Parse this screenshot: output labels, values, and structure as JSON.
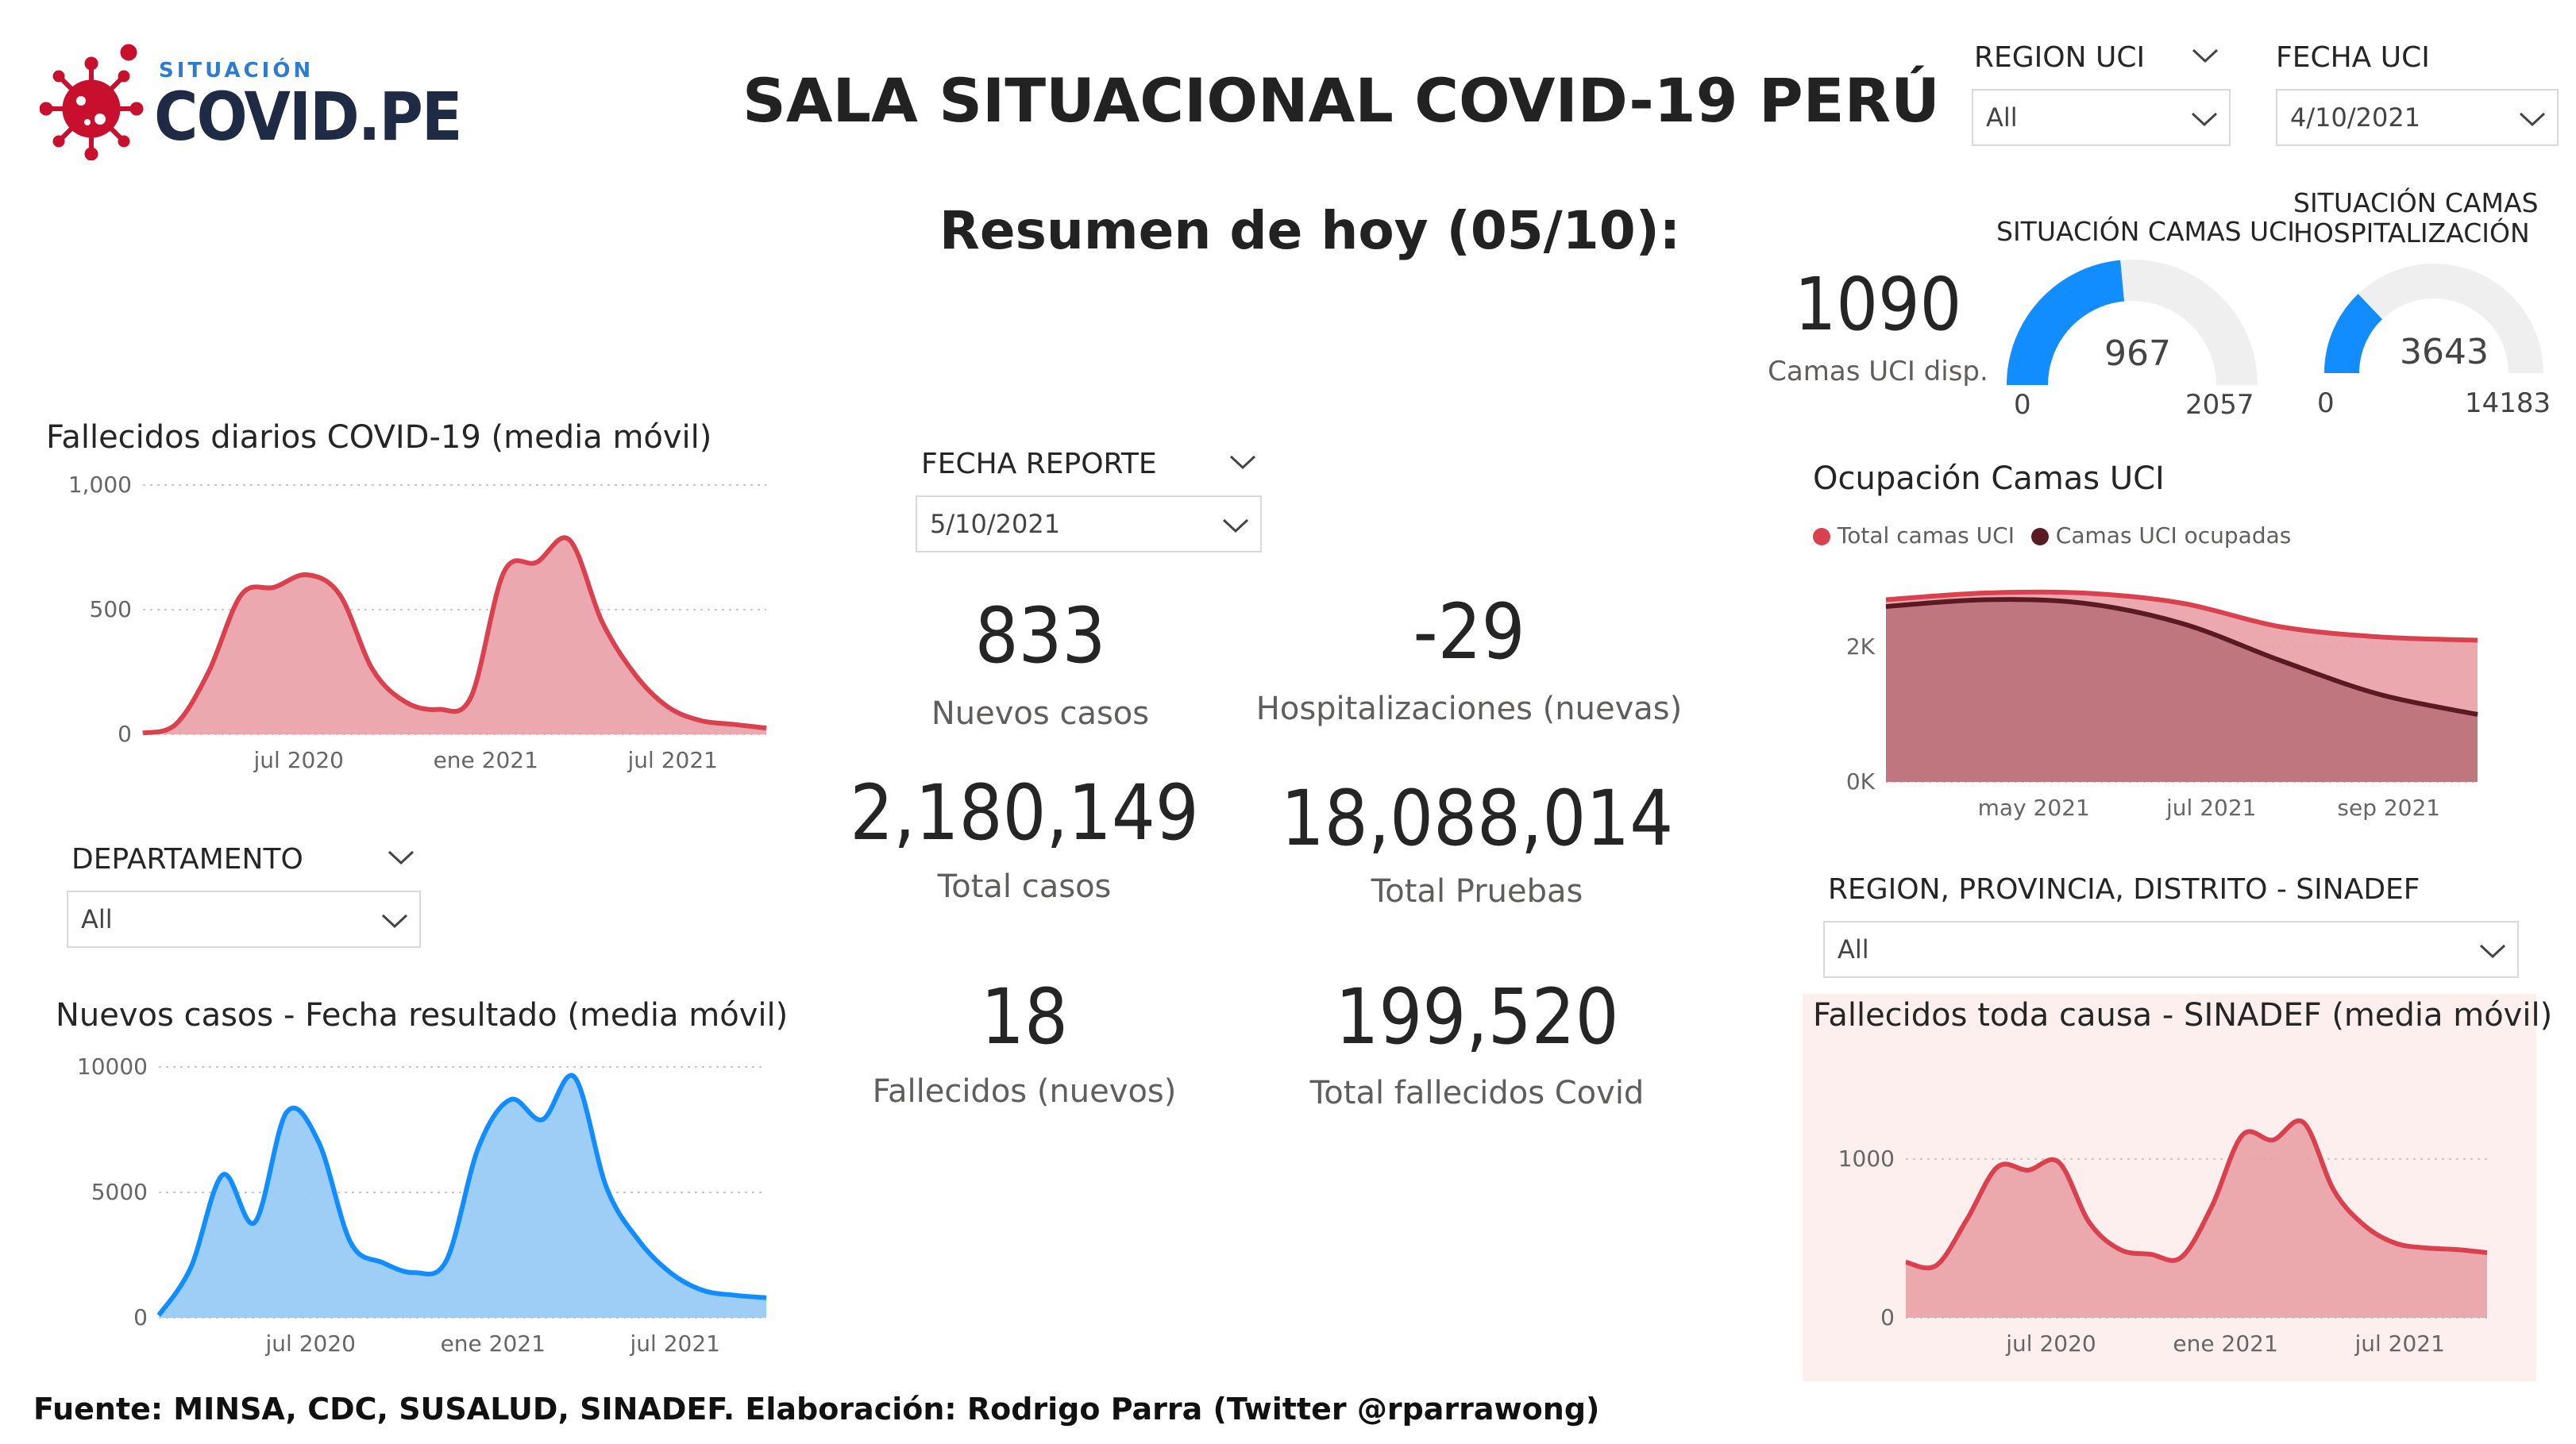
{
  "header": {
    "logo_small": "SITUACIÓN",
    "logo_big": "COVID.PE",
    "title": "SALA SITUACIONAL COVID-19 PERÚ",
    "subtitle": "Resumen de hoy (05/10):"
  },
  "slicers": {
    "region_uci": {
      "label": "REGION UCI",
      "value": "All"
    },
    "fecha_uci": {
      "label": "FECHA UCI",
      "value": "4/10/2021"
    },
    "fecha_reporte": {
      "label": "FECHA REPORTE",
      "value": "5/10/2021"
    },
    "departamento": {
      "label": "DEPARTAMENTO",
      "value": "All"
    },
    "region_sinadef": {
      "label": "REGION, PROVINCIA, DISTRITO - SINADEF",
      "value": "All"
    }
  },
  "kpis": {
    "nuevos_casos": {
      "value": "833",
      "label": "Nuevos casos"
    },
    "hospitalizaciones": {
      "value": "-29",
      "label": "Hospitalizaciones (nuevas)"
    },
    "total_casos": {
      "value": "2,180,149",
      "label": "Total casos"
    },
    "total_pruebas": {
      "value": "18,088,014",
      "label": "Total Pruebas"
    },
    "fallecidos": {
      "value": "18",
      "label": "Fallecidos (nuevos)"
    },
    "total_fallecidos": {
      "value": "199,520",
      "label": "Total fallecidos Covid"
    }
  },
  "uci": {
    "camas_disp_value": "1090",
    "camas_disp_label": "Camas UCI disp.",
    "gauge1": {
      "title": "SITUACIÓN CAMAS UCI",
      "value": "967",
      "min": "0",
      "max": "2057",
      "fraction": 0.47
    },
    "gauge2": {
      "title_line1": "SITUACIÓN CAMAS",
      "title_line2": "HOSPITALIZACIÓN",
      "value": "3643",
      "min": "0",
      "max": "14183",
      "fraction": 0.257
    }
  },
  "colors": {
    "red": "#d9414f",
    "red_fill": "#eaa3aa",
    "blue": "#118dff",
    "blue_fill": "#99cbf5",
    "dark_red": "#5a1a22",
    "gauge_bg": "#efefef",
    "sinadef_bg": "#fcefed"
  },
  "footer": "Fuente: MINSA, CDC, SUSALUD, SINADEF. Elaboración: Rodrigo Parra (Twitter @rparrawong)",
  "chart_data": [
    {
      "id": "fallecidos",
      "type": "area",
      "title": "Fallecidos diarios COVID-19 (media móvil)",
      "x_ticks": [
        "jul 2020",
        "ene 2021",
        "jul 2021"
      ],
      "y_ticks": [
        "0",
        "500",
        "1,000"
      ],
      "ylim": [
        0,
        1000
      ],
      "x": [
        "2020-03",
        "2020-04",
        "2020-05",
        "2020-06",
        "2020-07",
        "2020-08",
        "2020-09",
        "2020-10",
        "2020-11",
        "2020-12",
        "2021-01",
        "2021-02",
        "2021-03",
        "2021-04",
        "2021-05",
        "2021-06",
        "2021-07",
        "2021-08",
        "2021-09",
        "2021-10"
      ],
      "series": [
        {
          "values": [
            5,
            40,
            250,
            560,
            590,
            640,
            560,
            260,
            130,
            100,
            150,
            650,
            690,
            780,
            450,
            240,
            110,
            55,
            40,
            25
          ]
        }
      ]
    },
    {
      "id": "nuevos_casos",
      "type": "area",
      "title": "Nuevos casos - Fecha resultado (media móvil)",
      "x_ticks": [
        "jul 2020",
        "ene 2021",
        "jul 2021"
      ],
      "y_ticks": [
        "0",
        "5000",
        "10000"
      ],
      "ylim": [
        0,
        10000
      ],
      "x": [
        "2020-03",
        "2020-04",
        "2020-05",
        "2020-06",
        "2020-07",
        "2020-08",
        "2020-09",
        "2020-10",
        "2020-11",
        "2020-12",
        "2021-01",
        "2021-02",
        "2021-03",
        "2021-04",
        "2021-05",
        "2021-06",
        "2021-07",
        "2021-08",
        "2021-09",
        "2021-10"
      ],
      "series": [
        {
          "values": [
            100,
            2000,
            5700,
            3800,
            8200,
            7000,
            3000,
            2200,
            1800,
            2300,
            6800,
            8700,
            7900,
            9600,
            5200,
            3100,
            1800,
            1100,
            900,
            800
          ]
        }
      ]
    },
    {
      "id": "ocupacion_uci",
      "type": "area",
      "title": "Ocupación Camas UCI",
      "x_ticks": [
        "may 2021",
        "jul 2021",
        "sep 2021"
      ],
      "y_ticks": [
        "0K",
        "2K"
      ],
      "ylim": [
        0,
        3000
      ],
      "x": [
        "2021-04",
        "2021-05",
        "2021-06",
        "2021-07",
        "2021-08",
        "2021-09",
        "2021-10"
      ],
      "series": [
        {
          "name": "Total camas UCI",
          "values": [
            2700,
            2800,
            2800,
            2650,
            2300,
            2150,
            2100
          ]
        },
        {
          "name": "Camas UCI ocupadas",
          "values": [
            2600,
            2700,
            2650,
            2350,
            1800,
            1300,
            1000
          ]
        }
      ]
    },
    {
      "id": "sinadef",
      "type": "area",
      "title": "Fallecidos toda causa - SINADEF (media móvil)",
      "x_ticks": [
        "jul 2020",
        "ene 2021",
        "jul 2021"
      ],
      "y_ticks": [
        "0",
        "1000"
      ],
      "ylim": [
        0,
        1500
      ],
      "x": [
        "2020-03",
        "2020-04",
        "2020-05",
        "2020-06",
        "2020-07",
        "2020-08",
        "2020-09",
        "2020-10",
        "2020-11",
        "2020-12",
        "2021-01",
        "2021-02",
        "2021-03",
        "2021-04",
        "2021-05",
        "2021-06",
        "2021-07",
        "2021-08",
        "2021-09",
        "2021-10"
      ],
      "series": [
        {
          "values": [
            350,
            330,
            620,
            950,
            930,
            980,
            600,
            430,
            400,
            380,
            700,
            1150,
            1120,
            1230,
            800,
            580,
            470,
            440,
            430,
            410
          ]
        }
      ]
    }
  ]
}
